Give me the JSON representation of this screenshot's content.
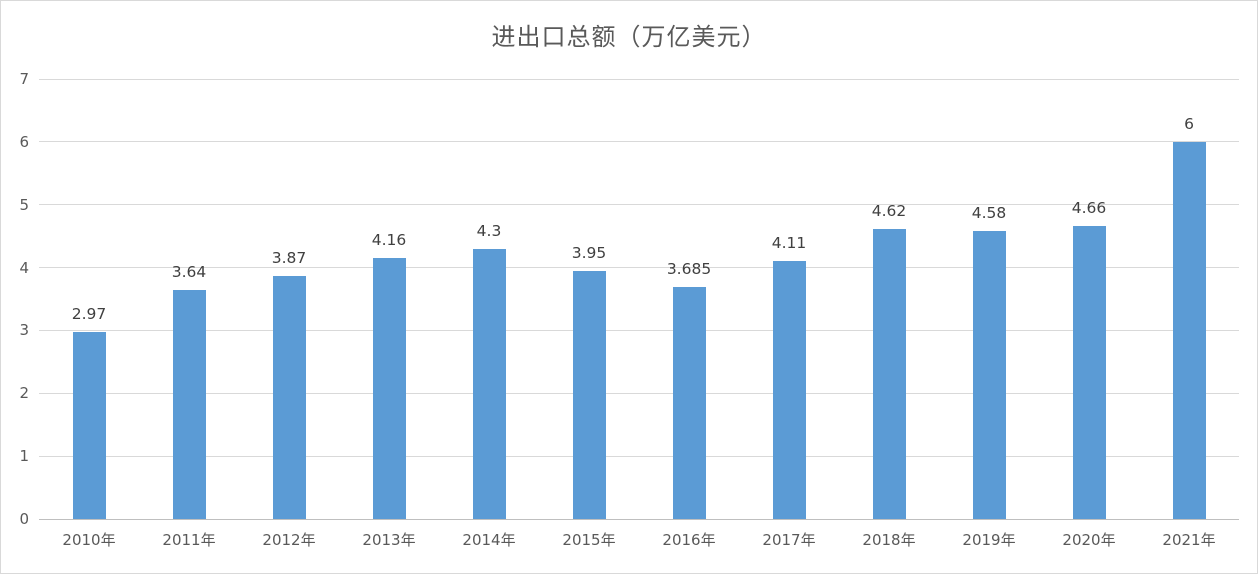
{
  "frame": {
    "background": "#FFFFFF",
    "border_color": "#D9D9D9"
  },
  "chart_data": {
    "type": "bar",
    "title": "进出口总额（万亿美元）",
    "xlabel": "",
    "ylabel": "",
    "categories": [
      "2010年",
      "2011年",
      "2012年",
      "2013年",
      "2014年",
      "2015年",
      "2016年",
      "2017年",
      "2018年",
      "2019年",
      "2020年",
      "2021年"
    ],
    "values": [
      2.97,
      3.64,
      3.87,
      4.16,
      4.3,
      3.95,
      3.685,
      4.11,
      4.62,
      4.58,
      4.66,
      6
    ],
    "value_labels": [
      "2.97",
      "3.64",
      "3.87",
      "4.16",
      "4.3",
      "3.95",
      "3.685",
      "4.11",
      "4.62",
      "4.58",
      "4.66",
      "6"
    ],
    "ylim": [
      0,
      7
    ],
    "ytick_labels": [
      "0",
      "1",
      "2",
      "3",
      "4",
      "5",
      "6",
      "7"
    ],
    "grid": true,
    "legend": "none",
    "colors": {
      "bar_fill": "#5B9BD5",
      "gridline": "#D9D9D9",
      "axis_line": "#BFBFBF",
      "title_text": "#595959",
      "tick_label_text": "#595959",
      "data_label_text": "#404040"
    }
  }
}
